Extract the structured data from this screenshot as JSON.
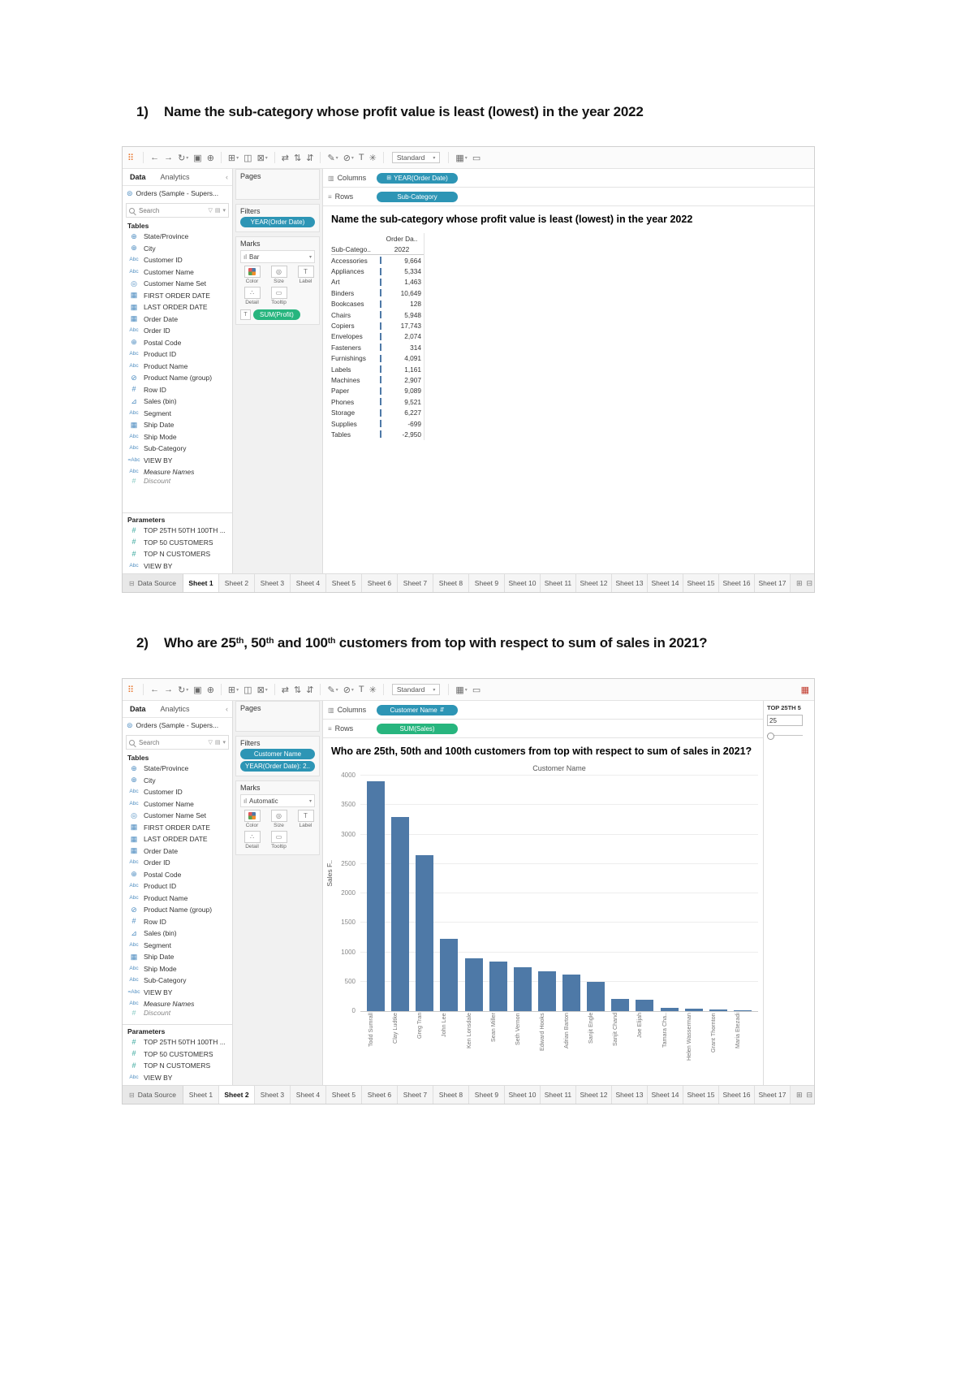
{
  "page": {
    "q1_num": "1)",
    "q1_text": "Name the sub-category whose profit value is least (lowest) in the year 2022",
    "q2_num": "2)",
    "q2": {
      "p1": "Who are 25",
      "s1": "th",
      "p2": ", 50",
      "s2": "th",
      "p3": " and 100",
      "s3": "th",
      "p4": " customers from top with respect to sum of sales in 2021?"
    }
  },
  "colors": {
    "pill_blue": "#2d95b5",
    "pill_green": "#27b57e",
    "bar": "#4e79a7",
    "icon_blue": "#4d8cc0",
    "icon_teal": "#35a69b"
  },
  "icons": {
    "logo": "⠿",
    "chev_left": "‹",
    "caret": "▾",
    "funnel": "▽",
    "grid": "▤",
    "datasource": "⊜",
    "ds_tab": "⊟",
    "columns_shelf": "▥",
    "rows_shelf": "≡",
    "hierarchy": "⊞",
    "sort_pill": "⇵",
    "mark_bar": "ıl",
    "label_box": "T",
    "abc": "Abc",
    "globe": "⊕",
    "set": "◎",
    "date": "▦",
    "clip": "⊘",
    "hash": "#",
    "bin": "⊿",
    "calc": "=Abc",
    "param": "#",
    "show_me": "▦",
    "tab_new_sheet": "⊞",
    "tab_new_dash": "⊟",
    "tab_new_story": "⊡"
  },
  "toolbar": {
    "fit_label": "Standard",
    "items": [
      {
        "name": "tableau-logo",
        "type": "logo"
      },
      {
        "name": "back-button",
        "glyph": "←",
        "sep": true
      },
      {
        "name": "forward-button",
        "glyph": "→"
      },
      {
        "name": "refresh-button",
        "glyph": "↻",
        "dd": true
      },
      {
        "name": "save-button",
        "glyph": "▣"
      },
      {
        "name": "add-datasource-button",
        "glyph": "⊕"
      },
      {
        "name": "new-worksheet-button",
        "glyph": "⊞",
        "dd": true,
        "sep": true
      },
      {
        "name": "duplicate-sheet-button",
        "glyph": "◫"
      },
      {
        "name": "clear-sheet-button",
        "glyph": "⊠",
        "dd": true
      },
      {
        "name": "swap-axes-button",
        "glyph": "⇄",
        "sep": true
      },
      {
        "name": "sort-ascending-button",
        "glyph": "⇅"
      },
      {
        "name": "sort-descending-button",
        "glyph": "⇵"
      },
      {
        "name": "highlight-button",
        "glyph": "✎",
        "dd": true,
        "sep": true
      },
      {
        "name": "format-button",
        "glyph": "⊘",
        "dd": true
      },
      {
        "name": "show-mark-labels-button",
        "glyph": "T"
      },
      {
        "name": "fix-axes-button",
        "glyph": "✳"
      },
      {
        "name": "fit-select",
        "type": "select",
        "sep": true
      },
      {
        "name": "show-hide-cards-button",
        "glyph": "▦",
        "dd": true,
        "sep": true
      },
      {
        "name": "presentation-mode-button",
        "glyph": "▭"
      }
    ]
  },
  "common": {
    "data_tab": "Data",
    "analytics_tab": "Analytics",
    "pages": "Pages",
    "filters": "Filters",
    "marks": "Marks",
    "columns": "Columns",
    "rows": "Rows",
    "datasource_tab": "Data Source",
    "sheets": [
      "Sheet 1",
      "Sheet 2",
      "Sheet 3",
      "Sheet 4",
      "Sheet 5",
      "Sheet 6",
      "Sheet 7",
      "Sheet 8",
      "Sheet 9",
      "Sheet 10",
      "Sheet 11",
      "Sheet 12",
      "Sheet 13",
      "Sheet 14",
      "Sheet 15",
      "Sheet 16",
      "Sheet 17"
    ]
  },
  "marks_buttons": [
    {
      "name": "color",
      "label": "Color",
      "glyph": "dots"
    },
    {
      "name": "size",
      "label": "Size",
      "glyph": "◎"
    },
    {
      "name": "label",
      "label": "Label",
      "glyph": "T"
    },
    {
      "name": "detail",
      "label": "Detail",
      "glyph": "∴"
    },
    {
      "name": "tooltip",
      "label": "Tooltip",
      "glyph": "▭"
    }
  ],
  "sidebar": {
    "datasource": "Orders (Sample - Supers...",
    "search_placeholder": "Search",
    "tables_label": "Tables",
    "parameters_label": "Parameters",
    "cut_field": "Discount",
    "fields": [
      {
        "icon": "globe",
        "label": "State/Province"
      },
      {
        "icon": "globe",
        "label": "City"
      },
      {
        "icon": "abc",
        "label": "Customer ID"
      },
      {
        "icon": "abc",
        "label": "Customer Name"
      },
      {
        "icon": "set",
        "label": "Customer Name Set"
      },
      {
        "icon": "date",
        "label": "FIRST ORDER DATE"
      },
      {
        "icon": "date",
        "label": "LAST ORDER DATE"
      },
      {
        "icon": "date",
        "label": "Order Date"
      },
      {
        "icon": "abc",
        "label": "Order ID"
      },
      {
        "icon": "globe",
        "label": "Postal Code"
      },
      {
        "icon": "abc",
        "label": "Product ID"
      },
      {
        "icon": "abc",
        "label": "Product Name"
      },
      {
        "icon": "clip",
        "label": "Product Name (group)"
      },
      {
        "icon": "hash",
        "label": "Row ID"
      },
      {
        "icon": "bin",
        "label": "Sales (bin)"
      },
      {
        "icon": "abc",
        "label": "Segment"
      },
      {
        "icon": "date",
        "label": "Ship Date"
      },
      {
        "icon": "abc",
        "label": "Ship Mode"
      },
      {
        "icon": "abc",
        "label": "Sub-Category"
      },
      {
        "icon": "calc",
        "label": "VIEW BY"
      },
      {
        "icon": "abc",
        "label": "Measure Names",
        "italic": true
      }
    ],
    "parameters": [
      {
        "icon": "param",
        "label": "TOP 25TH 50TH 100TH ..."
      },
      {
        "icon": "param",
        "label": "TOP 50 CUSTOMERS"
      },
      {
        "icon": "param",
        "label": "TOP N CUSTOMERS"
      },
      {
        "icon": "abc",
        "label": "VIEW BY"
      }
    ]
  },
  "t1": {
    "filters": [
      "YEAR(Order Date)"
    ],
    "mark_type": "Bar",
    "label_pill": "SUM(Profit)",
    "columns_pill": "YEAR(Order Date)",
    "rows_pill": "Sub-Category",
    "title": "Name the sub-category whose profit value is least (lowest) in the year 2022",
    "table": {
      "corner": "Order Da..",
      "row_header": "Sub-Catego..",
      "col": "2022"
    },
    "active_tab": "Sheet 1"
  },
  "t2": {
    "filters": [
      "Customer Name",
      "YEAR(Order Date): 2.."
    ],
    "mark_type": "Automatic",
    "columns_pill": "Customer Name",
    "rows_pill": "SUM(Sales)",
    "param": {
      "title": "TOP 25TH 5",
      "value": "25"
    },
    "active_tab": "Sheet 2"
  },
  "chart_data": [
    {
      "type": "table",
      "title": "Name the sub-category whose profit value is least (lowest) in the year 2022",
      "column_group_header": "Order Da..",
      "row_header": "Sub-Catego..",
      "columns": [
        "Sub-Category",
        "2022"
      ],
      "rows": [
        [
          "Accessories",
          9664
        ],
        [
          "Appliances",
          5334
        ],
        [
          "Art",
          1463
        ],
        [
          "Binders",
          10649
        ],
        [
          "Bookcases",
          128
        ],
        [
          "Chairs",
          5948
        ],
        [
          "Copiers",
          17743
        ],
        [
          "Envelopes",
          2074
        ],
        [
          "Fasteners",
          314
        ],
        [
          "Furnishings",
          4091
        ],
        [
          "Labels",
          1161
        ],
        [
          "Machines",
          2907
        ],
        [
          "Paper",
          9089
        ],
        [
          "Phones",
          9521
        ],
        [
          "Storage",
          6227
        ],
        [
          "Supplies",
          -699
        ],
        [
          "Tables",
          -2950
        ]
      ]
    },
    {
      "type": "bar",
      "title": "Who are 25th, 50th and 100th customers from top with respect to sum of sales in 2021?",
      "xlabel": "Customer Name",
      "ylabel": "Sales F..",
      "ylim": [
        0,
        4000
      ],
      "ytick_step": 500,
      "grid": "horizontal",
      "legend": false,
      "bar_color": "#4e79a7",
      "categories": [
        "Todd Sumrall",
        "Clay Ludtke",
        "Greg Tran",
        "John Lee",
        "Ken Lonsdale",
        "Sean Miller",
        "Seth Vernon",
        "Edward Hooks",
        "Adrian Barton",
        "Sanjit Engle",
        "Sanjit Chand",
        "Joe Elijah",
        "Tamara Cha..",
        "Helen Wasserman",
        "Grant Thornton",
        "Maria Etezadi"
      ],
      "values": [
        3900,
        3290,
        2650,
        1230,
        900,
        840,
        750,
        670,
        625,
        490,
        210,
        200,
        55,
        40,
        30,
        10
      ]
    }
  ]
}
